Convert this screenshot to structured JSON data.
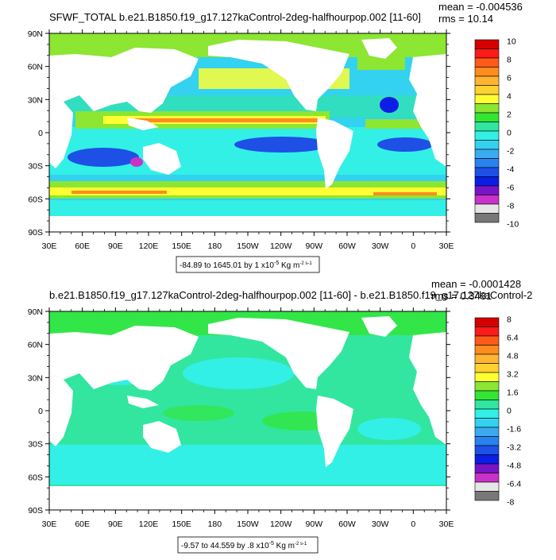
{
  "chart_data": [
    {
      "type": "heatmap",
      "title": "SFWF_TOTAL b.e21.B1850.f19_g17.127kaControl-2deg-halfhourpop.002 [11-60]",
      "mean_text": "mean = -0.004536",
      "rms_text": "rms = 10.14",
      "x_ticks": [
        "30E",
        "60E",
        "90E",
        "120E",
        "150E",
        "180",
        "150W",
        "120W",
        "90W",
        "60W",
        "30W",
        "0",
        "30E"
      ],
      "y_ticks": [
        "90N",
        "60N",
        "30N",
        "0",
        "30S",
        "60S",
        "90S"
      ],
      "xlim": [
        30,
        390
      ],
      "ylim": [
        -90,
        90
      ],
      "colorbar_labels": [
        "10",
        "8",
        "6",
        "4",
        "2",
        "0",
        "-2",
        "-4",
        "-6",
        "-8",
        "-10"
      ],
      "colorbar_colors": [
        "#d40000",
        "#ff1a1a",
        "#ff5a1a",
        "#ff8c1e",
        "#ffb432",
        "#ffd232",
        "#ffff32",
        "#8ce632",
        "#32e632",
        "#32e6a0",
        "#32f0e6",
        "#32d2f0",
        "#3caaf0",
        "#2882f0",
        "#1e50e6",
        "#0a1ee6",
        "#7814c8",
        "#c832c8",
        "#e6e6e6",
        "#787878"
      ],
      "range_text": "-84.89 to 1645.01 by 1 x10",
      "range_exp": "-5",
      "range_unit": " Kg m",
      "range_unit_exp": "-2 s-1"
    },
    {
      "type": "heatmap",
      "title": "b.e21.B1850.f19_g17.127kaControl-2deg-halfhourpop.002 [11-60] - b.e21.B1850.f19_g17.127kaControl-2",
      "mean_text": "mean = -0.0001428",
      "rms_text": "rms = 0.3431",
      "x_ticks": [
        "30E",
        "60E",
        "90E",
        "120E",
        "150E",
        "180",
        "150W",
        "120W",
        "90W",
        "60W",
        "30W",
        "0",
        "30E"
      ],
      "y_ticks": [
        "90N",
        "60N",
        "30N",
        "0",
        "30S",
        "60S",
        "90S"
      ],
      "xlim": [
        30,
        390
      ],
      "ylim": [
        -90,
        90
      ],
      "colorbar_labels": [
        "8",
        "6.4",
        "4.8",
        "3.2",
        "1.6",
        "0",
        "-1.6",
        "-3.2",
        "-4.8",
        "-6.4",
        "-8"
      ],
      "colorbar_colors": [
        "#d40000",
        "#ff1a1a",
        "#ff5a1a",
        "#ff8c1e",
        "#ffb432",
        "#ffd232",
        "#ffff32",
        "#8ce632",
        "#32e632",
        "#32e6a0",
        "#32f0e6",
        "#32d2f0",
        "#3caaf0",
        "#2882f0",
        "#1e50e6",
        "#0a1ee6",
        "#7814c8",
        "#c832c8",
        "#e6e6e6",
        "#787878"
      ],
      "range_text": "-9.57 to 44.559 by .8 x10",
      "range_exp": "-5",
      "range_unit": " Kg m",
      "range_unit_exp": "-2 s-1"
    }
  ],
  "palette": {
    "land": "#ffffff",
    "cyan": "#32f0e6",
    "light_cyan": "#32d2f0",
    "teal": "#32e6a0",
    "green": "#32e632",
    "yellow": "#ffff32",
    "orange": "#ff8c1e",
    "red": "#ff1a1a",
    "blue": "#1e50e6",
    "dark_blue": "#0a1ee6",
    "purple": "#c832c8"
  }
}
